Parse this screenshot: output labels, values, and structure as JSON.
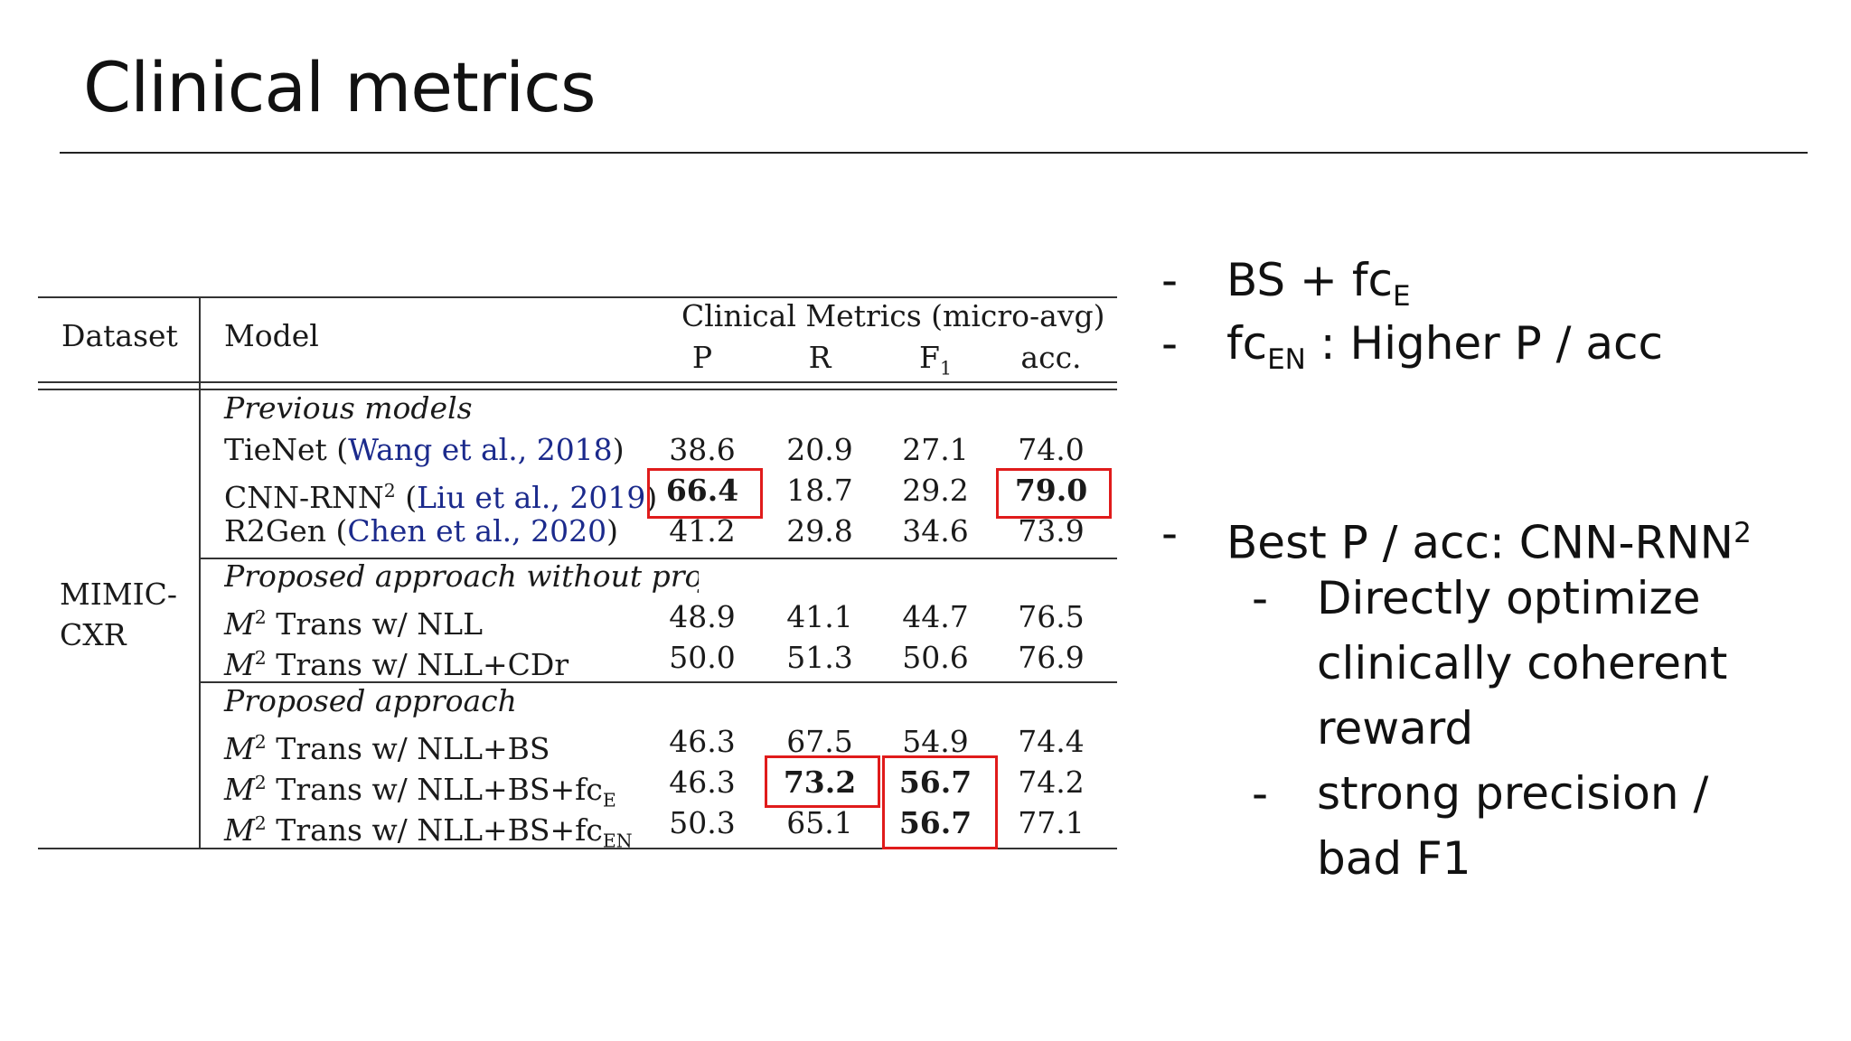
{
  "title": "Clinical metrics",
  "table": {
    "headers": {
      "dataset": "Dataset",
      "model": "Model",
      "group": "Clinical Metrics (micro-avg)",
      "p": "P",
      "r": "R",
      "f1_main": "F",
      "f1_sub": "1",
      "acc": "acc."
    },
    "dataset_line1": "MIMIC-",
    "dataset_line2": "CXR",
    "sections": {
      "previous": "Previous models",
      "without": "Proposed approach without proj",
      "proposed": "Proposed approach"
    },
    "rows": {
      "tienet": {
        "name": "TieNet (",
        "cite": "Wang et al., 2018",
        "close": ")",
        "p": "38.6",
        "r": "20.9",
        "f1": "27.1",
        "acc": "74.0"
      },
      "cnnrnn": {
        "name": "CNN-RNN",
        "sup": "2",
        "open": " (",
        "cite": "Liu et al., 2019",
        "close": ")",
        "p": "66.4",
        "r": "18.7",
        "f1": "29.2",
        "acc": "79.0"
      },
      "r2gen": {
        "name": "R2Gen (",
        "cite": "Chen et al., 2020",
        "close": ")",
        "p": "41.2",
        "r": "29.8",
        "f1": "34.6",
        "acc": "73.9"
      },
      "m2_nll": {
        "m": "M",
        "sup": "2",
        "name": " Trans w/ NLL",
        "p": "48.9",
        "r": "41.1",
        "f1": "44.7",
        "acc": "76.5"
      },
      "m2_nll_cdr": {
        "m": "M",
        "sup": "2",
        "name": " Trans w/ NLL+CDr",
        "p": "50.0",
        "r": "51.3",
        "f1": "50.6",
        "acc": "76.9"
      },
      "m2_nll_bs": {
        "m": "M",
        "sup": "2",
        "name": " Trans w/ NLL+BS",
        "p": "46.3",
        "r": "67.5",
        "f1": "54.9",
        "acc": "74.4"
      },
      "m2_nll_bs_fce": {
        "m": "M",
        "sup": "2",
        "name": " Trans w/ NLL+BS+fc",
        "sub": "E",
        "p": "46.3",
        "r": "73.2",
        "f1": "56.7",
        "acc": "74.2"
      },
      "m2_nll_bs_fcen": {
        "m": "M",
        "sup": "2",
        "name": " Trans w/ NLL+BS+fc",
        "sub": "EN",
        "p": "50.3",
        "r": "65.1",
        "f1": "56.7",
        "acc": "77.1"
      }
    }
  },
  "highlight_color": "#e01b1b",
  "bullets": {
    "dash": "-",
    "b1_main": "BS + fc",
    "b1_sub": "E",
    "b2_main": "fc",
    "b2_sub": "EN",
    "b2_rest": " : Higher P / acc",
    "b3_main": "Best P / acc: CNN-RNN",
    "b3_sup": "2",
    "s1_l1": "Directly optimize",
    "s1_l2": "clinically coherent",
    "s1_l3": "reward",
    "s2_l1": "strong precision /",
    "s2_l2": "bad F1"
  }
}
